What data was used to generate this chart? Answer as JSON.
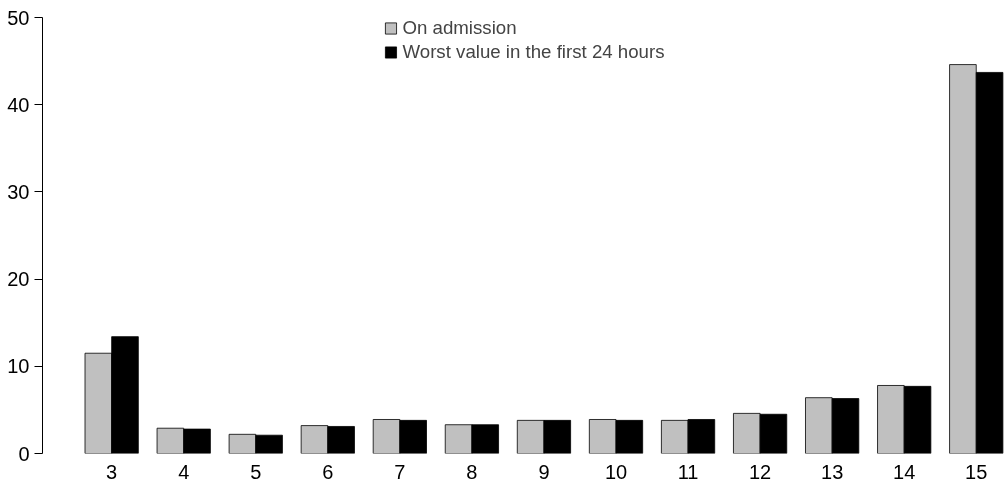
{
  "chart_data": {
    "type": "bar",
    "categories": [
      "3",
      "4",
      "5",
      "6",
      "7",
      "8",
      "9",
      "10",
      "11",
      "12",
      "13",
      "14",
      "15"
    ],
    "series": [
      {
        "name": "On admission",
        "color": "#c0c0c0",
        "values": [
          11.5,
          2.9,
          2.2,
          3.2,
          3.9,
          3.3,
          3.8,
          3.9,
          3.8,
          4.6,
          6.4,
          7.8,
          44.6
        ]
      },
      {
        "name": "Worst value in the first 24 hours",
        "color": "#000000",
        "values": [
          13.4,
          2.8,
          2.1,
          3.1,
          3.8,
          3.3,
          3.8,
          3.8,
          3.9,
          4.5,
          6.3,
          7.7,
          43.7
        ]
      }
    ],
    "ylim": [
      0,
      50
    ],
    "yticks": [
      0,
      10,
      20,
      30,
      40,
      50
    ],
    "grid": false,
    "legend": "top"
  }
}
